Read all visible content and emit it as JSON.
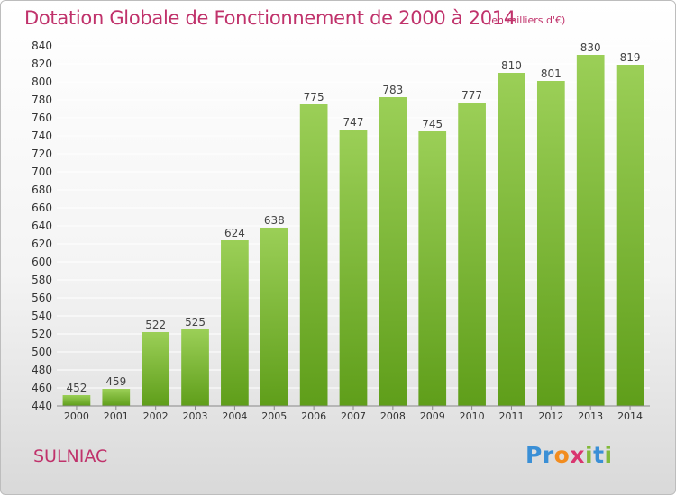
{
  "header": {
    "title": "Dotation Globale de Fonctionnement de 2000 à 2014",
    "subtitle": "(en milliers d'€)"
  },
  "footer": {
    "city": "SULNIAC",
    "logo_text": "Proxiti",
    "logo_letters": [
      {
        "ch": "P",
        "color": "#3a8fd6"
      },
      {
        "ch": "r",
        "color": "#3a8fd6"
      },
      {
        "ch": "o",
        "color": "#f28c1e"
      },
      {
        "ch": "x",
        "color": "#d9356f"
      },
      {
        "ch": "i",
        "color": "#82b93a"
      },
      {
        "ch": "t",
        "color": "#3a8fd6"
      },
      {
        "ch": "i",
        "color": "#82b93a"
      }
    ]
  },
  "colors": {
    "title": "#c0326b",
    "bar_top": "#9bcf57",
    "bar_bottom": "#5f9e1a",
    "grid": "#ffffff"
  },
  "chart_data": {
    "type": "bar",
    "categories": [
      "2000",
      "2001",
      "2002",
      "2003",
      "2004",
      "2005",
      "2006",
      "2007",
      "2008",
      "2009",
      "2010",
      "2011",
      "2012",
      "2013",
      "2014"
    ],
    "values": [
      452,
      459,
      522,
      525,
      624,
      638,
      775,
      747,
      783,
      745,
      777,
      810,
      801,
      830,
      819
    ],
    "ylim": [
      440,
      840
    ],
    "ytick_step": 20,
    "grid": true,
    "legend": "none"
  }
}
